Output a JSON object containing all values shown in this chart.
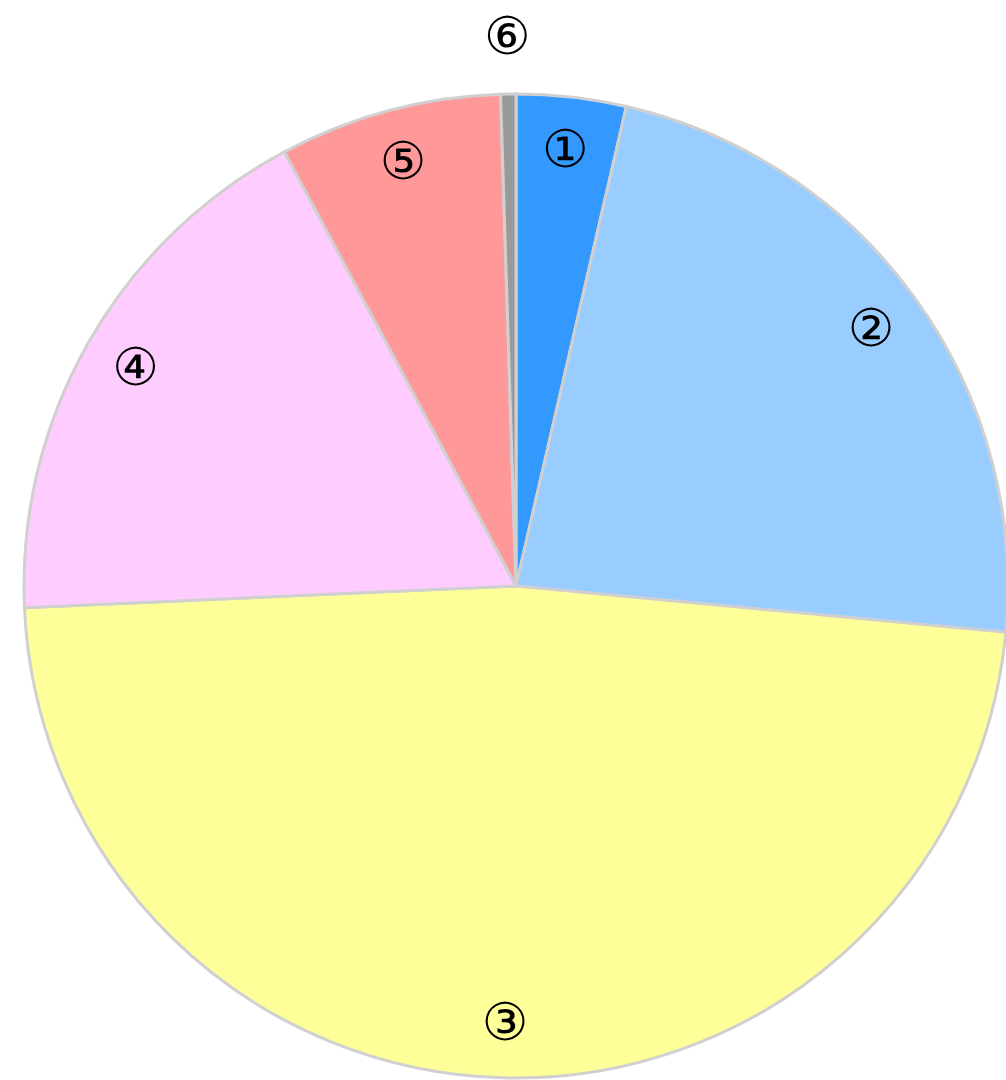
{
  "chart_data": {
    "type": "pie",
    "categories": [
      "①",
      "②",
      "③",
      "④",
      "⑤",
      "⑥"
    ],
    "values": [
      3.6,
      22.9,
      47.8,
      17.9,
      7.3,
      0.5
    ],
    "colors": [
      "#3399ff",
      "#99ccff",
      "#ffff99",
      "#ffccff",
      "#ff9999",
      "#999999"
    ]
  }
}
